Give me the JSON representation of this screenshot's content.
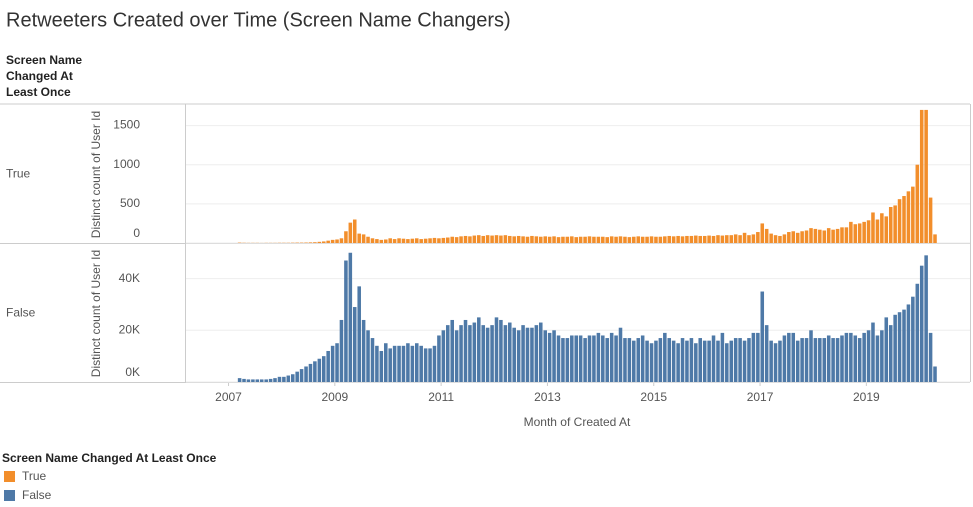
{
  "chart_data": {
    "type": "bar",
    "title": "Retweeters Created over Time (Screen Name Changers)",
    "row_header": [
      "Screen Name",
      "Changed At",
      "Least Once"
    ],
    "xlabel": "Month of Created At",
    "legend_title": "Screen Name Changed At Least Once",
    "xlim": [
      2006.2,
      2020.95
    ],
    "xticks": [
      2007,
      2009,
      2011,
      2013,
      2015,
      2017,
      2019
    ],
    "grid": true,
    "x": [
      2007,
      2007.083,
      2007.167,
      2007.25,
      2007.333,
      2007.417,
      2007.5,
      2007.583,
      2007.667,
      2007.75,
      2007.833,
      2007.917,
      2008,
      2008.083,
      2008.167,
      2008.25,
      2008.333,
      2008.417,
      2008.5,
      2008.583,
      2008.667,
      2008.75,
      2008.833,
      2008.917,
      2009,
      2009.083,
      2009.167,
      2009.25,
      2009.333,
      2009.417,
      2009.5,
      2009.583,
      2009.667,
      2009.75,
      2009.833,
      2009.917,
      2010,
      2010.083,
      2010.167,
      2010.25,
      2010.333,
      2010.417,
      2010.5,
      2010.583,
      2010.667,
      2010.75,
      2010.833,
      2010.917,
      2011,
      2011.083,
      2011.167,
      2011.25,
      2011.333,
      2011.417,
      2011.5,
      2011.583,
      2011.667,
      2011.75,
      2011.833,
      2011.917,
      2012,
      2012.083,
      2012.167,
      2012.25,
      2012.333,
      2012.417,
      2012.5,
      2012.583,
      2012.667,
      2012.75,
      2012.833,
      2012.917,
      2013,
      2013.083,
      2013.167,
      2013.25,
      2013.333,
      2013.417,
      2013.5,
      2013.583,
      2013.667,
      2013.75,
      2013.833,
      2013.917,
      2014,
      2014.083,
      2014.167,
      2014.25,
      2014.333,
      2014.417,
      2014.5,
      2014.583,
      2014.667,
      2014.75,
      2014.833,
      2014.917,
      2015,
      2015.083,
      2015.167,
      2015.25,
      2015.333,
      2015.417,
      2015.5,
      2015.583,
      2015.667,
      2015.75,
      2015.833,
      2015.917,
      2016,
      2016.083,
      2016.167,
      2016.25,
      2016.333,
      2016.417,
      2016.5,
      2016.583,
      2016.667,
      2016.75,
      2016.833,
      2016.917,
      2017,
      2017.083,
      2017.167,
      2017.25,
      2017.333,
      2017.417,
      2017.5,
      2017.583,
      2017.667,
      2017.75,
      2017.833,
      2017.917,
      2018,
      2018.083,
      2018.167,
      2018.25,
      2018.333,
      2018.417,
      2018.5,
      2018.583,
      2018.667,
      2018.75,
      2018.833,
      2018.917,
      2019,
      2019.083,
      2019.167,
      2019.25,
      2019.333,
      2019.417,
      2019.5,
      2019.583,
      2019.667,
      2019.75,
      2019.833,
      2019.917,
      2020,
      2020.083,
      2020.167,
      2020.25
    ],
    "panels": [
      {
        "name": "True",
        "color": "#f28e2b",
        "ylabel": "Distinct count of User Id",
        "ylim": [
          0,
          1750
        ],
        "yticks": [
          0,
          500,
          1000,
          1500
        ],
        "values": [
          0,
          0,
          5,
          3,
          2,
          2,
          2,
          1,
          2,
          2,
          2,
          3,
          3,
          3,
          4,
          5,
          5,
          6,
          8,
          10,
          15,
          20,
          30,
          40,
          45,
          60,
          150,
          260,
          300,
          120,
          110,
          80,
          60,
          50,
          40,
          45,
          60,
          50,
          60,
          55,
          50,
          55,
          60,
          50,
          55,
          60,
          65,
          60,
          65,
          70,
          80,
          75,
          85,
          90,
          85,
          95,
          100,
          90,
          100,
          95,
          100,
          95,
          100,
          90,
          85,
          90,
          85,
          80,
          90,
          85,
          80,
          85,
          80,
          85,
          75,
          80,
          80,
          85,
          75,
          80,
          80,
          85,
          80,
          80,
          80,
          75,
          85,
          80,
          85,
          80,
          75,
          80,
          85,
          80,
          80,
          85,
          80,
          80,
          85,
          90,
          85,
          90,
          85,
          90,
          90,
          95,
          90,
          90,
          95,
          90,
          100,
          95,
          100,
          100,
          110,
          100,
          130,
          100,
          110,
          140,
          250,
          180,
          120,
          100,
          90,
          110,
          140,
          150,
          130,
          150,
          160,
          190,
          180,
          170,
          160,
          190,
          170,
          180,
          200,
          200,
          270,
          240,
          250,
          270,
          290,
          390,
          300,
          380,
          340,
          460,
          480,
          560,
          600,
          660,
          720,
          1000,
          1700,
          1700,
          580,
          110
        ]
      },
      {
        "name": "False",
        "color": "#4e79a7",
        "ylabel": "Distinct count of User Id",
        "ylim": [
          0,
          53000
        ],
        "yticks": [
          {
            "value": 0,
            "label": "0K"
          },
          {
            "value": 20000,
            "label": "20K"
          },
          {
            "value": 40000,
            "label": "40K"
          }
        ],
        "values": [
          0,
          0,
          1500,
          1200,
          1000,
          1000,
          1000,
          1000,
          1000,
          1200,
          1500,
          2000,
          2000,
          2500,
          3000,
          4000,
          5000,
          6000,
          7000,
          8000,
          9000,
          10000,
          12000,
          14000,
          15000,
          24000,
          47000,
          50000,
          29000,
          37000,
          24000,
          20000,
          17000,
          14000,
          12000,
          15000,
          13000,
          14000,
          14000,
          14000,
          15000,
          14000,
          15000,
          14000,
          13000,
          13000,
          14000,
          18000,
          20000,
          22000,
          24000,
          20000,
          22000,
          24000,
          22000,
          23000,
          25000,
          22000,
          21000,
          22000,
          25000,
          24000,
          22000,
          23000,
          21000,
          20000,
          22000,
          21000,
          21000,
          22000,
          23000,
          20000,
          19000,
          20000,
          18000,
          17000,
          17000,
          18000,
          18000,
          18000,
          17000,
          18000,
          18000,
          19000,
          18000,
          17000,
          19000,
          18000,
          21000,
          17000,
          17000,
          16000,
          17000,
          18000,
          16000,
          15000,
          16000,
          17000,
          19000,
          17000,
          16000,
          15000,
          17000,
          16000,
          17000,
          15000,
          17000,
          16000,
          16000,
          18000,
          16000,
          19000,
          15000,
          16000,
          17000,
          17000,
          16000,
          17000,
          19000,
          19000,
          35000,
          22000,
          16000,
          15000,
          16000,
          18000,
          19000,
          19000,
          16000,
          17000,
          17000,
          20000,
          17000,
          17000,
          17000,
          18000,
          17000,
          17000,
          18000,
          19000,
          19000,
          18000,
          17000,
          19000,
          20000,
          23000,
          18000,
          20000,
          25000,
          22000,
          26000,
          27000,
          28000,
          30000,
          33000,
          38000,
          45000,
          49000,
          19000,
          6000
        ]
      }
    ]
  }
}
